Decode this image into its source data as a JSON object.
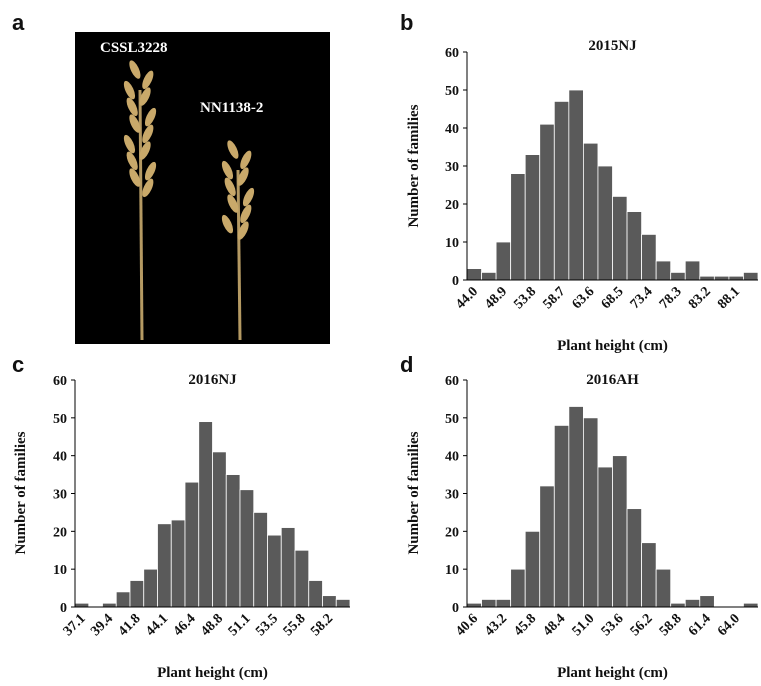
{
  "photo": {
    "panel": "a",
    "labels": [
      "CSSL3228",
      "NN1138-2"
    ]
  },
  "chart_data": [
    {
      "type": "bar",
      "panel": "b",
      "title": "2015NJ",
      "x_label": "Plant height (cm)",
      "y_label": "Number of families",
      "categories": [
        "44.0",
        null,
        "48.9",
        null,
        "53.8",
        null,
        "58.7",
        null,
        "63.6",
        null,
        "68.5",
        null,
        "73.4",
        null,
        "78.3",
        null,
        "83.2",
        null,
        "88.1",
        null
      ],
      "values": [
        3,
        2,
        10,
        28,
        33,
        41,
        47,
        50,
        36,
        30,
        22,
        18,
        12,
        5,
        2,
        5,
        1,
        1,
        1,
        2
      ],
      "color": "#5a5a5a",
      "ylim": [
        0,
        60
      ],
      "yticks": [
        0,
        10,
        20,
        30,
        40,
        50,
        60
      ]
    },
    {
      "type": "bar",
      "panel": "c",
      "title": "2016NJ",
      "x_label": "Plant height (cm)",
      "y_label": "Number of families",
      "categories": [
        "37.1",
        null,
        "39.4",
        null,
        "41.8",
        null,
        "44.1",
        null,
        "46.4",
        null,
        "48.8",
        null,
        "51.1",
        null,
        "53.5",
        null,
        "55.8",
        null,
        "58.2",
        null
      ],
      "values": [
        1,
        0,
        1,
        4,
        7,
        10,
        22,
        23,
        33,
        49,
        41,
        35,
        31,
        25,
        19,
        21,
        15,
        7,
        3,
        2
      ],
      "color": "#5a5a5a",
      "ylim": [
        0,
        60
      ],
      "yticks": [
        0,
        10,
        20,
        30,
        40,
        50,
        60
      ]
    },
    {
      "type": "bar",
      "panel": "d",
      "title": "2016AH",
      "x_label": "Plant height (cm)",
      "y_label": "Number of families",
      "categories": [
        "40.6",
        null,
        "43.2",
        null,
        "45.8",
        null,
        "48.4",
        null,
        "51.0",
        null,
        "53.6",
        null,
        "56.2",
        null,
        "58.8",
        null,
        "61.4",
        null,
        "64.0",
        null
      ],
      "values": [
        1,
        2,
        2,
        10,
        20,
        32,
        48,
        53,
        50,
        37,
        40,
        26,
        17,
        10,
        1,
        2,
        3,
        0,
        0,
        1
      ],
      "color": "#5a5a5a",
      "ylim": [
        0,
        60
      ],
      "yticks": [
        0,
        10,
        20,
        30,
        40,
        50,
        60
      ]
    }
  ]
}
